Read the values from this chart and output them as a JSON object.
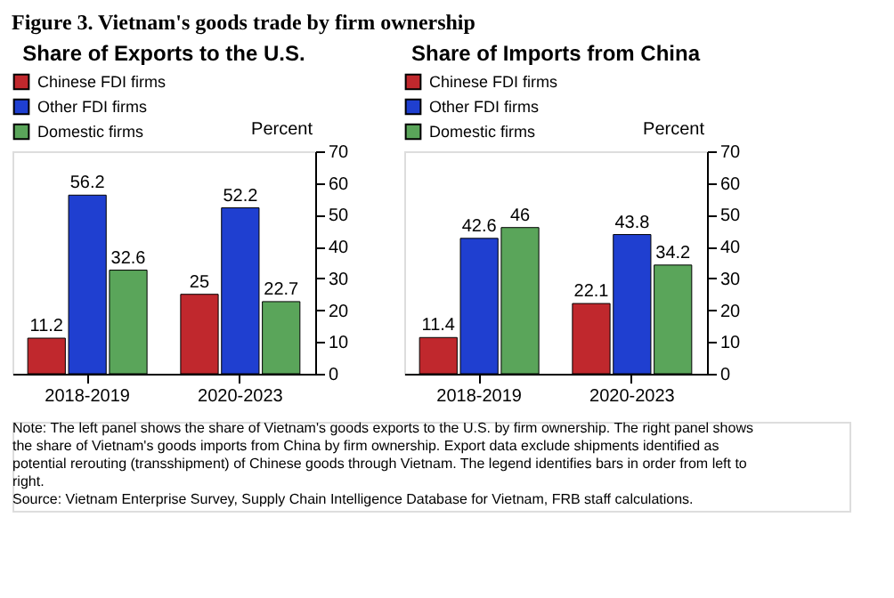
{
  "chart_data": [
    {
      "type": "other",
      "title": "Figure 3. Vietnam's goods trade by firm ownership",
      "annotations": [
        "Note: The left panel shows the share of Vietnam's goods exports to the U.S. by firm ownership. The right panel shows the share of Vietnam's goods imports from China by firm ownership. Export data exclude shipments identified as potential rerouting (transshipment) of Chinese goods through Vietnam. The legend identifies bars in order from left to right.",
        "Source: Vietnam Enterprise Survey, Supply Chain Intelligence Database for Vietnam, FRB staff calculations."
      ]
    },
    {
      "type": "bar",
      "title": "Share of Exports to the U.S.",
      "ylabel": "Percent",
      "categories": [
        "2018-2019",
        "2020-2023"
      ],
      "series": [
        {
          "name": "Chinese FDI firms",
          "color": "#c0282d",
          "values": [
            11.2,
            25
          ]
        },
        {
          "name": "Other FDI firms",
          "color": "#1f3fd0",
          "values": [
            56.2,
            52.2
          ]
        },
        {
          "name": "Domestic firms",
          "color": "#5aa55a",
          "values": [
            32.6,
            22.7
          ]
        }
      ],
      "ylim": [
        0,
        70
      ],
      "yticks": [
        0,
        10,
        20,
        30,
        40,
        50,
        60,
        70
      ],
      "data_labels": true,
      "legend": "top",
      "grid": false
    },
    {
      "type": "bar",
      "title": "Share of Imports from China",
      "ylabel": "Percent",
      "categories": [
        "2018-2019",
        "2020-2023"
      ],
      "series": [
        {
          "name": "Chinese FDI firms",
          "color": "#c0282d",
          "values": [
            11.4,
            22.1
          ]
        },
        {
          "name": "Other FDI firms",
          "color": "#1f3fd0",
          "values": [
            42.6,
            43.8
          ]
        },
        {
          "name": "Domestic firms",
          "color": "#5aa55a",
          "values": [
            46,
            34.2
          ]
        }
      ],
      "ylim": [
        0,
        70
      ],
      "yticks": [
        0,
        10,
        20,
        30,
        40,
        50,
        60,
        70
      ],
      "data_labels": true,
      "legend": "top",
      "grid": false
    }
  ]
}
